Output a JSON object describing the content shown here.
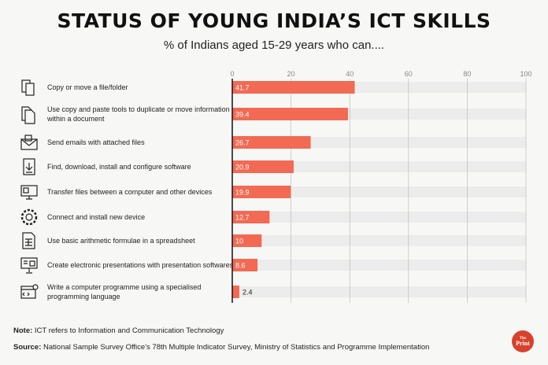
{
  "chart_data": {
    "type": "bar",
    "orientation": "horizontal",
    "title": "STATUS OF YOUNG INDIA’S ICT SKILLS",
    "subtitle": "% of Indians aged 15-29 years who can....",
    "categories": [
      "Copy or move a file/folder",
      "Use copy and paste tools to duplicate or move information within a document",
      "Send emails with attached files",
      "Find, download, install and configure software",
      "Transfer files between a computer and other devices",
      "Connect and install new device",
      "Use basic arithmetic formulae in a spreadsheet",
      "Create electronic presentations with presentation softwares",
      "Write a computer programme using a specialised programming language"
    ],
    "category_lines": [
      [
        "Copy or move a file/folder"
      ],
      [
        "Use copy and paste tools to duplicate or move information",
        "within a document"
      ],
      [
        "Send emails with attached files"
      ],
      [
        "Find, download, install and configure software"
      ],
      [
        "Transfer files between a computer and other devices"
      ],
      [
        "Connect and install new device"
      ],
      [
        "Use basic arithmetic formulae in a spreadsheet"
      ],
      [
        "Create electronic presentations with presentation softwares"
      ],
      [
        "Write a computer programme using a specialised",
        "programming language"
      ]
    ],
    "icons": [
      "copy-file-icon",
      "copy-paste-icon",
      "email-attachment-icon",
      "download-icon",
      "computer-transfer-icon",
      "gear-icon",
      "spreadsheet-icon",
      "presentation-icon",
      "code-icon"
    ],
    "values": [
      41.7,
      39.4,
      26.7,
      20.9,
      19.9,
      12.7,
      10,
      8.6,
      2.4
    ],
    "value_labels": [
      "41.7",
      "39.4",
      "26.7",
      "20.9",
      "19.9",
      "12.7",
      "10",
      "8.6",
      "2.4"
    ],
    "xlim": [
      0,
      100
    ],
    "xticks": [
      "0",
      "20",
      "40",
      "60",
      "80",
      "100"
    ],
    "xtick_position": "top",
    "grid": true,
    "colors": {
      "bar": "#f26a54",
      "track": "#ececec",
      "logo": "#d9412c"
    }
  },
  "footer": {
    "note_label": "Note:",
    "note_text": " ICT refers to Information and Communication Technology",
    "source_label": "Source:",
    "source_text": " National Sample Survey Office's 78th Multiple Indicator Survey, Ministry of Statistics and Programme Implementation"
  },
  "logo": {
    "top": "The",
    "bottom": "Print"
  }
}
